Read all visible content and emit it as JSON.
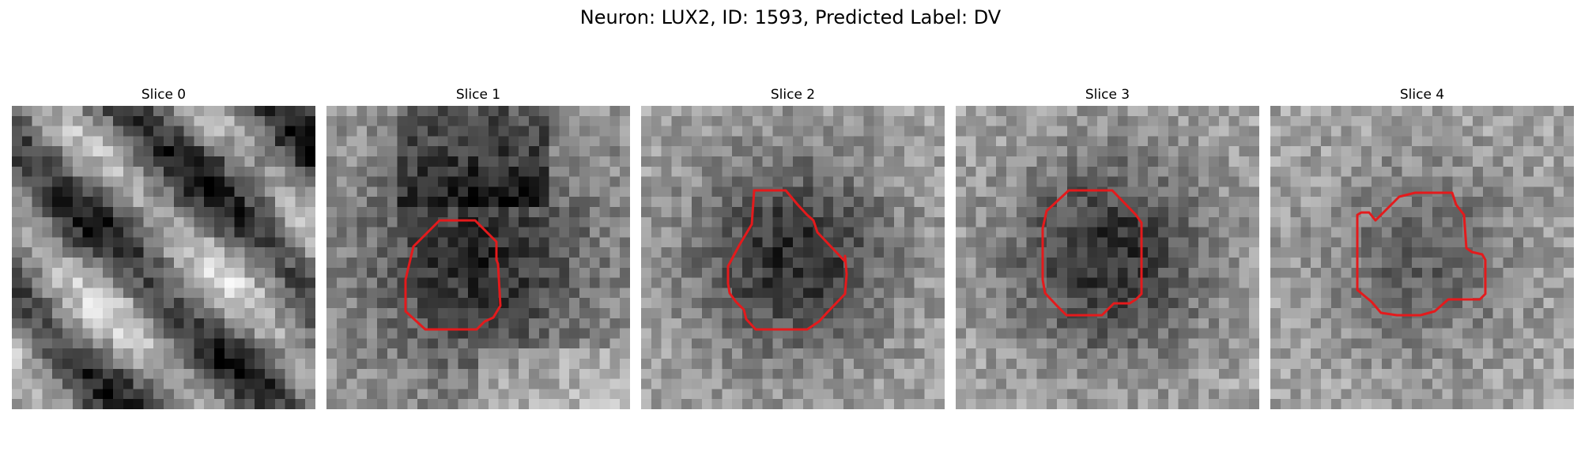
{
  "figure": {
    "title": "Neuron: LUX2, ID: 1593, Predicted Label: DV"
  },
  "colors": {
    "roi_outline": "#e41a1c",
    "background": "#ffffff"
  },
  "panels": [
    {
      "title": "Slice 0",
      "has_roi": false,
      "pattern": "diagonal-bands"
    },
    {
      "title": "Slice 1",
      "has_roi": true,
      "pattern": "dark-center-bright-lower-right"
    },
    {
      "title": "Slice 2",
      "has_roi": true,
      "pattern": "dark-center"
    },
    {
      "title": "Slice 3",
      "has_roi": true,
      "pattern": "dark-center"
    },
    {
      "title": "Slice 4",
      "has_roi": true,
      "pattern": "faint-dark-center"
    }
  ]
}
